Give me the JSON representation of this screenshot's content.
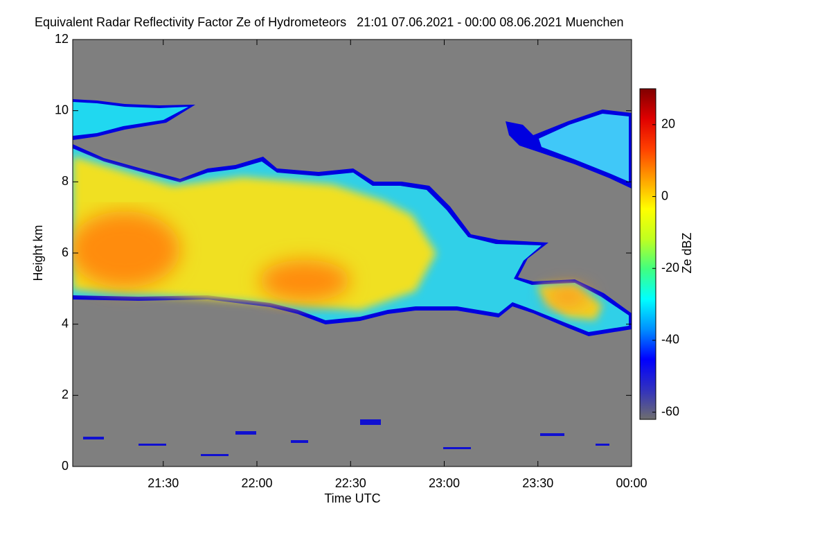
{
  "chart_data": {
    "type": "heatmap",
    "title": "Equivalent Radar Reflectivity Factor Ze of Hydrometeors   21:01 07.06.2021 - 00:00 08.06.2021 Muenchen",
    "x_label": "Time UTC",
    "y_label": "Height km",
    "colorbar_label": "Ze dBZ",
    "xlim": [
      1261,
      1440
    ],
    "xticks": [
      {
        "value": 1290,
        "label": "21:30"
      },
      {
        "value": 1320,
        "label": "22:00"
      },
      {
        "value": 1350,
        "label": "22:30"
      },
      {
        "value": 1380,
        "label": "23:00"
      },
      {
        "value": 1410,
        "label": "23:30"
      },
      {
        "value": 1440,
        "label": "00:00"
      }
    ],
    "ylim": [
      0,
      12
    ],
    "yticks": [
      0,
      2,
      4,
      6,
      8,
      10,
      12
    ],
    "clim": [
      -62,
      30
    ],
    "cticks": [
      -60,
      -40,
      -20,
      0,
      20
    ],
    "colormap": [
      "#6e6e6e",
      "#3030c0",
      "#0000ff",
      "#0090ff",
      "#00ffff",
      "#40ff80",
      "#c0ff20",
      "#ffff00",
      "#ffa000",
      "#ff4000",
      "#e00000",
      "#800000"
    ],
    "background": "#7f7f7f"
  }
}
